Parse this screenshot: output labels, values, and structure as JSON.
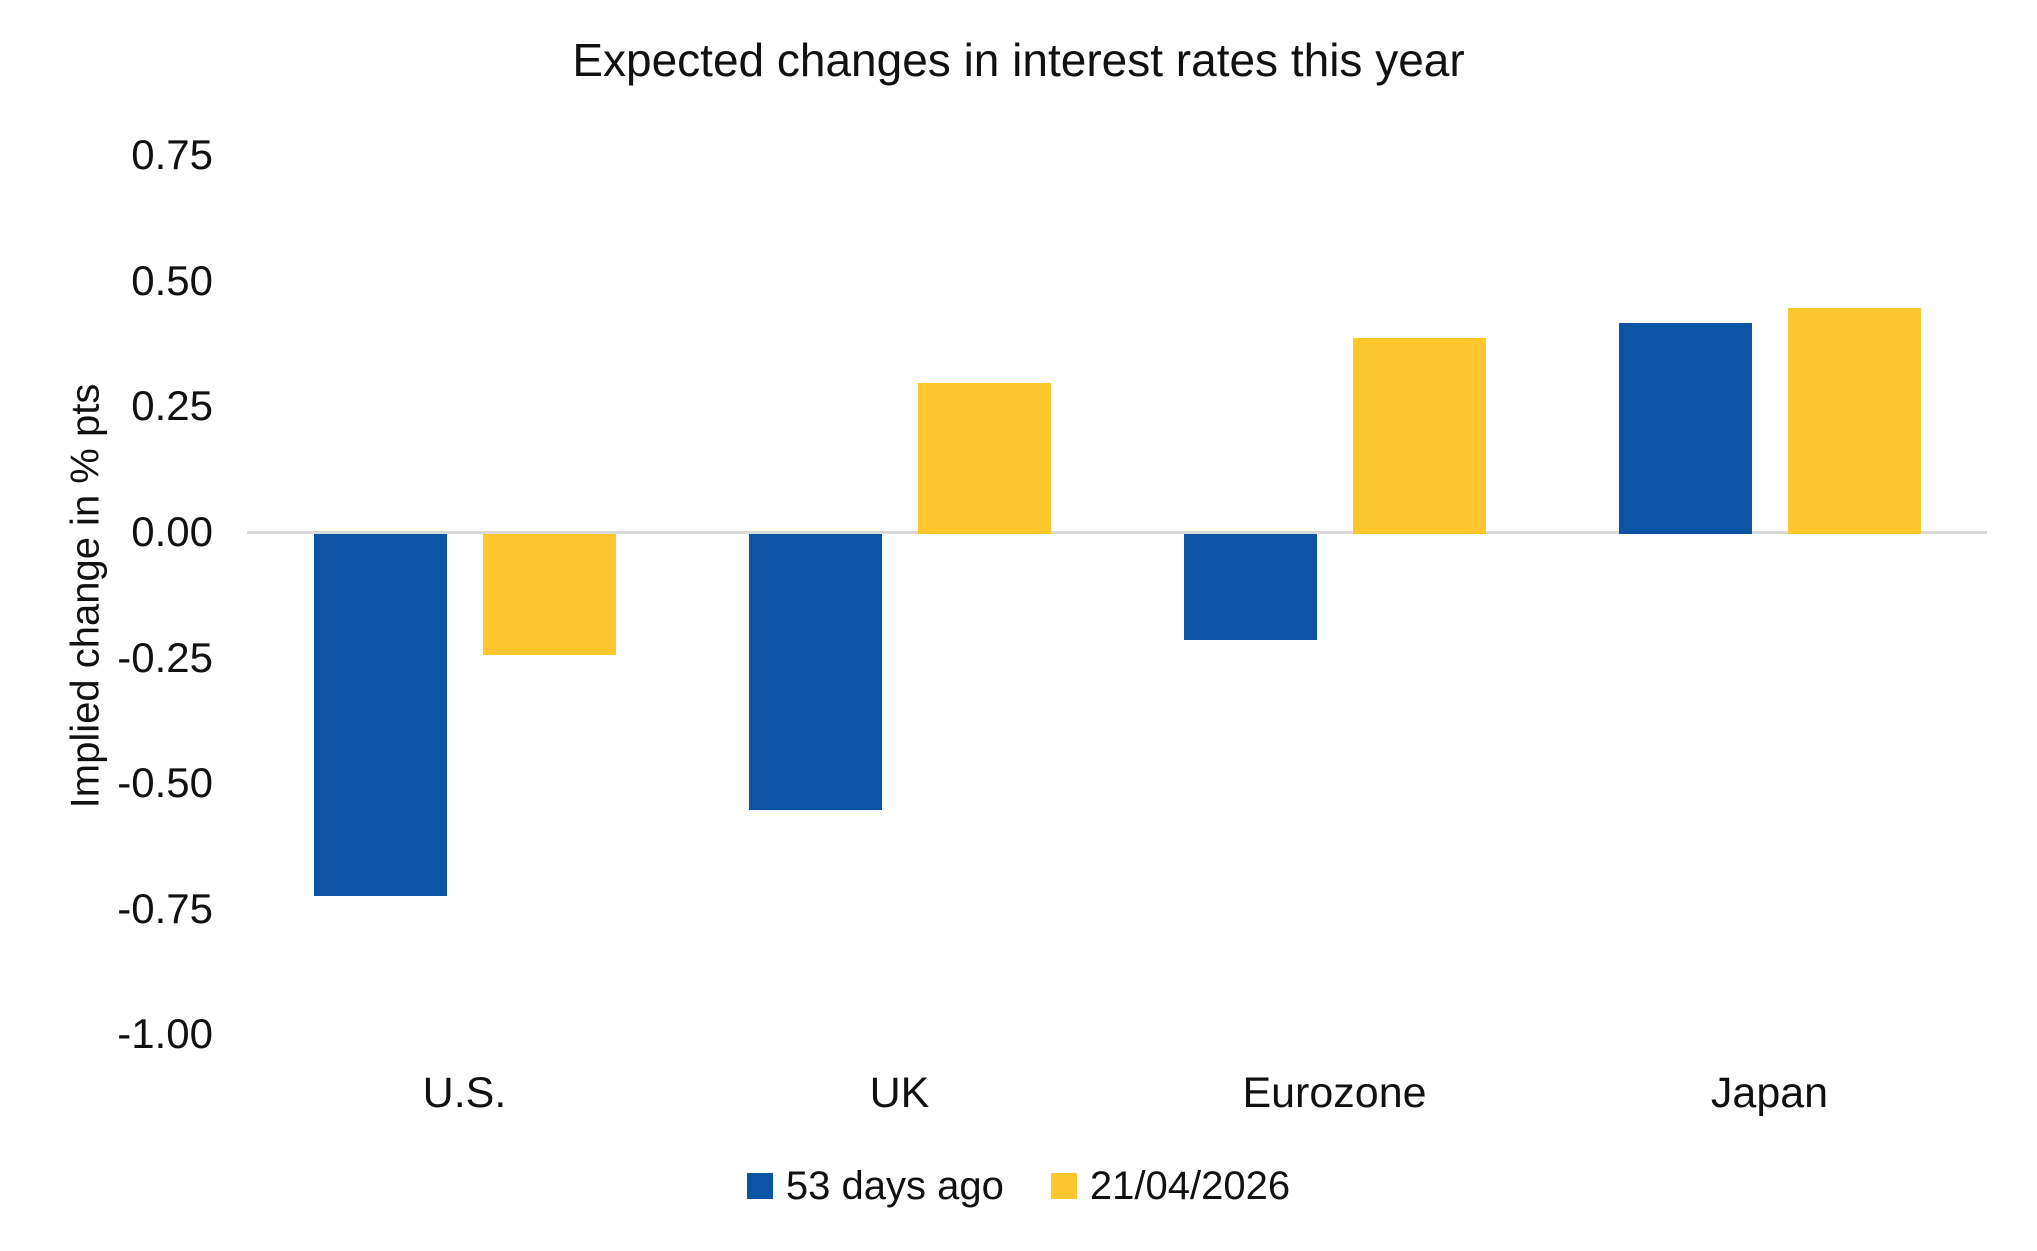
{
  "title": "Expected changes in interest rates this year",
  "y_axis": {
    "title": "Implied change in % pts"
  },
  "colors": {
    "series_blue": "#0B55A4",
    "series_yellow": "#FFC62E",
    "axis_line": "#D9D9D9",
    "text": "#111111"
  },
  "legend": {
    "items": [
      {
        "label": "53 days ago",
        "color": "#0B55A4"
      },
      {
        "label": "21/04/2026",
        "color": "#FFC62E"
      }
    ]
  },
  "chart_data": {
    "type": "bar",
    "title": "Expected changes in interest rates this year",
    "categories": [
      "U.S.",
      "UK",
      "Eurozone",
      "Japan"
    ],
    "series": [
      {
        "name": "53 days ago",
        "color": "#0B55A4",
        "values": [
          -0.72,
          -0.55,
          -0.21,
          0.42
        ]
      },
      {
        "name": "21/04/2026",
        "color": "#FFC62E",
        "values": [
          -0.24,
          0.3,
          0.39,
          0.45
        ]
      }
    ],
    "xlabel": "",
    "ylabel": "Implied change in % pts",
    "ylim": [
      -1.0,
      0.75
    ],
    "ytick_step": 0.25,
    "ytick_labels": [
      "0.75",
      "0.50",
      "0.25",
      "0.00",
      "-0.25",
      "-0.50",
      "-0.75",
      "-1.00"
    ],
    "grid": false,
    "legend_position": "bottom"
  }
}
